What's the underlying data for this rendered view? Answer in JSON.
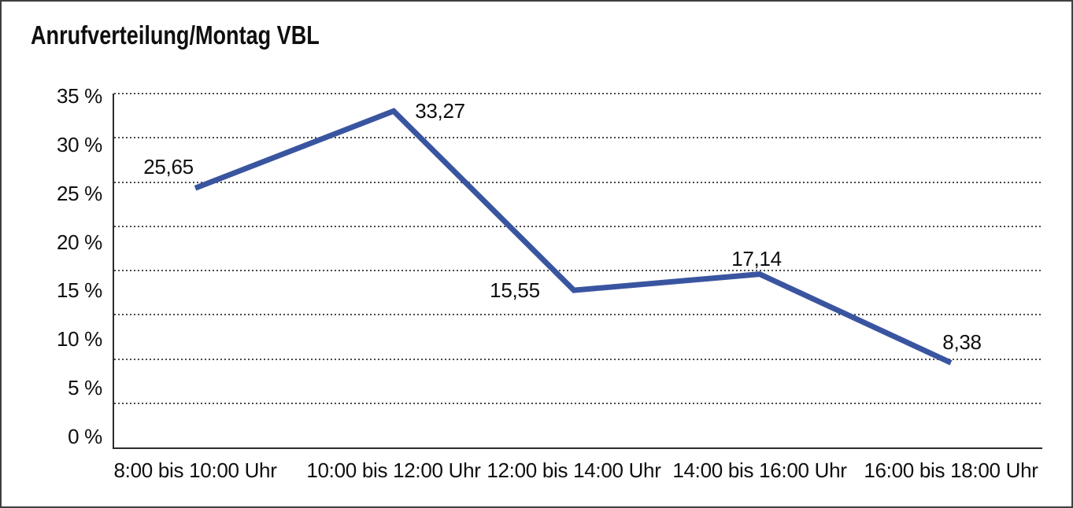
{
  "page": {
    "title": "Anrufverteilung/Montag VBL"
  },
  "chart_data": {
    "type": "line",
    "title": "Anrufverteilung/Montag VBL",
    "categories": [
      "8:00 bis 10:00 Uhr",
      "10:00 bis 12:00 Uhr",
      "12:00 bis 14:00 Uhr",
      "14:00 bis 16:00 Uhr",
      "16:00 bis 18:00 Uhr"
    ],
    "values": [
      25.65,
      33.27,
      15.55,
      17.14,
      8.38
    ],
    "value_labels": [
      "25,65",
      "33,27",
      "15,55",
      "17,14",
      "8,38"
    ],
    "xlabel": "",
    "ylabel": "",
    "ylim": [
      0,
      35
    ],
    "ytick_step": 5,
    "ytick_labels": [
      "35 %",
      "30 %",
      "25 %",
      "20 %",
      "15 %",
      "10 %",
      "5 %",
      "0 %"
    ],
    "grid": "horizontal-dotted",
    "legend_position": "none"
  },
  "colors": {
    "line": "#3A55A0",
    "axis": "#2B2B2B",
    "gridline": "#4A4A4A",
    "frame_border": "#3F3F3F",
    "text": "#0F0F0F",
    "background": "#FFFFFF"
  }
}
